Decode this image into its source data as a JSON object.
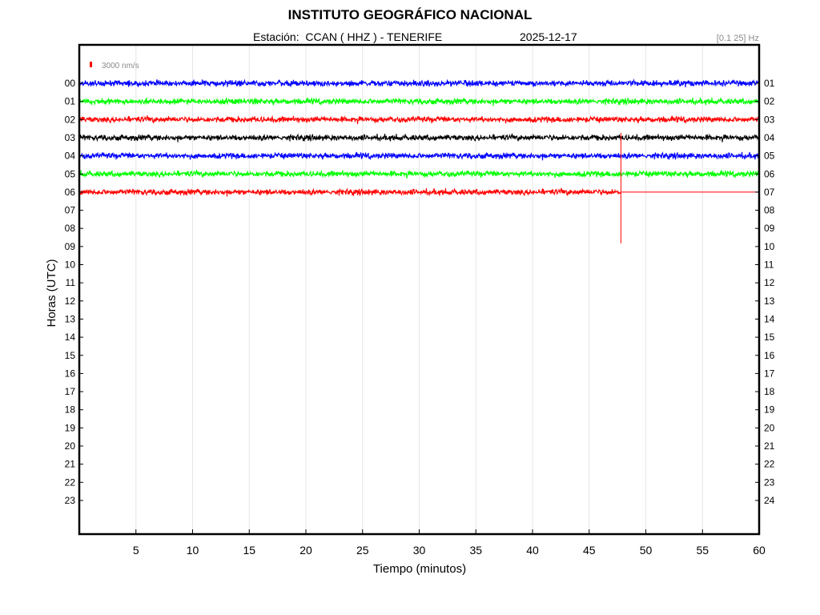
{
  "header": {
    "title": "INSTITUTO GEOGRÁFICO NACIONAL",
    "station_line": "Estación:  CCAN ( HHZ ) - TENERIFE",
    "date": "2025-12-17",
    "filter": "[0.1 25] Hz"
  },
  "chart_data": {
    "type": "line",
    "xlabel": "Tiempo (minutos)",
    "ylabel": "Horas (UTC)",
    "xlim": [
      0,
      60
    ],
    "x_ticks": [
      "5",
      "10",
      "15",
      "20",
      "25",
      "30",
      "35",
      "40",
      "45",
      "50",
      "55",
      "60"
    ],
    "left_ticks": [
      "00",
      "01",
      "02",
      "03",
      "04",
      "05",
      "06",
      "07",
      "08",
      "09",
      "10",
      "11",
      "12",
      "13",
      "14",
      "15",
      "16",
      "17",
      "18",
      "19",
      "20",
      "21",
      "22",
      "23"
    ],
    "right_ticks": [
      "01",
      "02",
      "03",
      "04",
      "05",
      "06",
      "07",
      "08",
      "09",
      "10",
      "11",
      "12",
      "13",
      "14",
      "15",
      "16",
      "17",
      "18",
      "19",
      "20",
      "21",
      "22",
      "23",
      "24"
    ],
    "scale_label": "3000 nm/s",
    "scale_color": "#ff0000",
    "grid": true,
    "series": [
      {
        "hour": "00",
        "color": "#0000ff",
        "start_min": 0,
        "end_min": 60
      },
      {
        "hour": "01",
        "color": "#00ff00",
        "start_min": 0,
        "end_min": 60
      },
      {
        "hour": "02",
        "color": "#ff0000",
        "start_min": 0,
        "end_min": 60
      },
      {
        "hour": "03",
        "color": "#000000",
        "start_min": 0,
        "end_min": 60
      },
      {
        "hour": "04",
        "color": "#0000ff",
        "start_min": 0,
        "end_min": 60
      },
      {
        "hour": "05",
        "color": "#00ff00",
        "start_min": 0,
        "end_min": 60
      },
      {
        "hour": "06",
        "color": "#ff0000",
        "start_min": 0,
        "end_min": 47.8
      }
    ],
    "current_time_marker": {
      "hour": "06",
      "minute": 47.8,
      "color": "#ff0000"
    }
  }
}
